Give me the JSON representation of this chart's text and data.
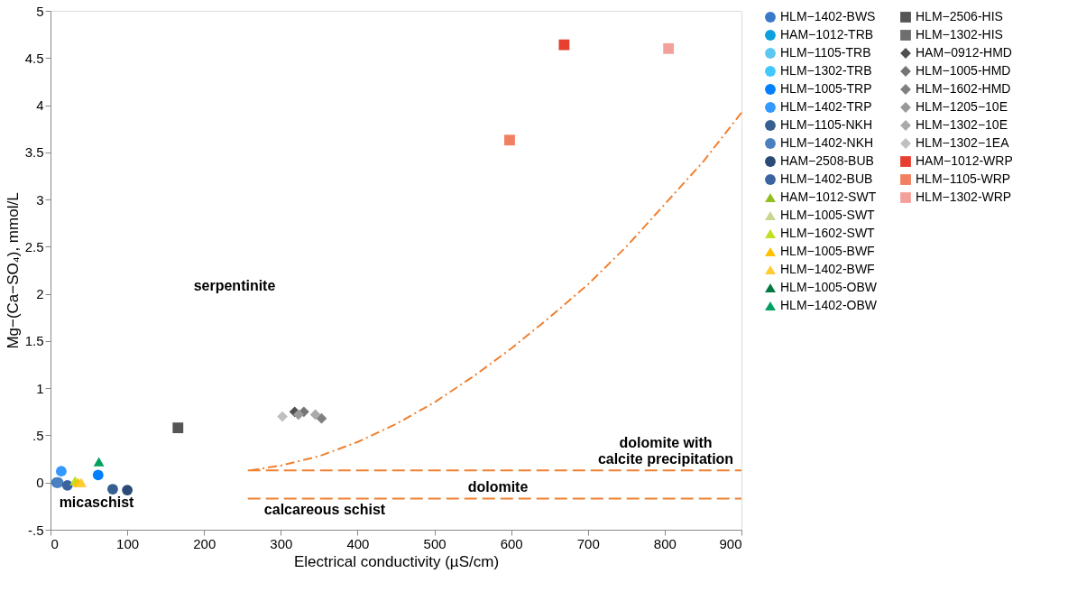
{
  "chart_data": {
    "type": "scatter",
    "xlabel": "Electrical conductivity (µS/cm)",
    "ylabel": "Mg−(Ca−SO₄), mmol/L",
    "xlim": [
      0,
      900
    ],
    "xticks": [
      0,
      100,
      200,
      300,
      400,
      500,
      600,
      700,
      800,
      900
    ],
    "ylim": [
      -0.5,
      5
    ],
    "yticks": [
      {
        "value": -0.5,
        "label": "-.5"
      },
      0,
      {
        "value": 0.5,
        "label": ".5"
      },
      1,
      1.5,
      2,
      2.5,
      3,
      3.5,
      4,
      4.5,
      5
    ],
    "grid": false,
    "legend": "right",
    "series": [
      {
        "name": "HLM−1402-BWS",
        "color": "#3a78c9",
        "marker": "circle",
        "x": [
          8
        ],
        "values": [
          0.0
        ]
      },
      {
        "name": "HAM−1012-TRB",
        "color": "#0aa0e0",
        "marker": "circle",
        "x": [
          null
        ],
        "values": [
          null
        ]
      },
      {
        "name": "HLM−1105-TRB",
        "color": "#5ac8f0",
        "marker": "circle"
      },
      {
        "name": "HLM−1302-TRB",
        "color": "#40c8ff",
        "marker": "circle",
        "x": [
          null
        ],
        "values": [
          null
        ]
      },
      {
        "name": "HLM−1005-TRP",
        "color": "#0080ff",
        "marker": "circle",
        "x": [
          62
        ],
        "values": [
          0.08
        ]
      },
      {
        "name": "HLM−1402-TRP",
        "color": "#3399ff",
        "marker": "circle",
        "x": [
          14
        ],
        "values": [
          0.12
        ]
      },
      {
        "name": "HLM−1105-NKH",
        "color": "#345f90",
        "marker": "circle",
        "x": [
          81
        ],
        "values": [
          -0.07
        ]
      },
      {
        "name": "HLM−1402-NKH",
        "color": "#4a80c0",
        "marker": "circle",
        "x": [
          10
        ],
        "values": [
          0.0
        ]
      },
      {
        "name": "HAM−2508-BUB",
        "color": "#2a4a78",
        "marker": "circle",
        "x": [
          100
        ],
        "values": [
          -0.08
        ]
      },
      {
        "name": "HLM−1402-BUB",
        "color": "#3a64a0",
        "marker": "circle",
        "x": [
          22
        ],
        "values": [
          -0.03
        ]
      },
      {
        "name": "HAM−1012-SWT",
        "color": "#90c020",
        "marker": "triangle",
        "x": [
          null
        ],
        "values": [
          null
        ]
      },
      {
        "name": "HLM−1005-SWT",
        "color": "#c8d890",
        "marker": "triangle",
        "x": [
          null
        ],
        "values": [
          null
        ]
      },
      {
        "name": "HLM−1602-SWT",
        "color": "#c0e020",
        "marker": "triangle",
        "x": [
          32
        ],
        "values": [
          0.02
        ]
      },
      {
        "name": "HLM−1005-BWF",
        "color": "#ffc000",
        "marker": "triangle",
        "x": [
          36
        ],
        "values": [
          0.0
        ]
      },
      {
        "name": "HLM−1402-BWF",
        "color": "#ffcc33",
        "marker": "triangle",
        "x": [
          40
        ],
        "values": [
          0.0
        ]
      },
      {
        "name": "HLM−1005-OBW",
        "color": "#007a40",
        "marker": "triangle",
        "x": [
          null
        ],
        "values": [
          null
        ]
      },
      {
        "name": "HLM−1402-OBW",
        "color": "#00a060",
        "marker": "triangle",
        "x": [
          63
        ],
        "values": [
          0.22
        ]
      },
      {
        "name": "HLM−2506-HIS",
        "color": "#555555",
        "marker": "square",
        "x": [
          166
        ],
        "values": [
          0.58
        ]
      },
      {
        "name": "HLM−1302-HIS",
        "color": "#6e6e6e",
        "marker": "square"
      },
      {
        "name": "HAM−0912-HMD",
        "color": "#505050",
        "marker": "diamond",
        "x": [
          318
        ],
        "values": [
          0.75
        ]
      },
      {
        "name": "HLM−1005-HMD",
        "color": "#757575",
        "marker": "diamond",
        "x": [
          330
        ],
        "values": [
          0.75
        ]
      },
      {
        "name": "HLM−1602-HMD",
        "color": "#808080",
        "marker": "diamond",
        "x": [
          353
        ],
        "values": [
          0.68
        ]
      },
      {
        "name": "HLM−1205−10E",
        "color": "#999999",
        "marker": "diamond",
        "x": [
          323
        ],
        "values": [
          0.72
        ]
      },
      {
        "name": "HLM−1302−10E",
        "color": "#aaaaaa",
        "marker": "diamond",
        "x": [
          345
        ],
        "values": [
          0.72
        ]
      },
      {
        "name": "HLM−1302−1EA",
        "color": "#c0c0c0",
        "marker": "diamond",
        "x": [
          302
        ],
        "values": [
          0.7
        ]
      },
      {
        "name": "HAM−1012-WRP",
        "color": "#e84030",
        "marker": "square",
        "x": [
          669
        ],
        "values": [
          4.64
        ]
      },
      {
        "name": "HLM−1105-WRP",
        "color": "#f08060",
        "marker": "square",
        "x": [
          598
        ],
        "values": [
          3.63
        ]
      },
      {
        "name": "HLM−1302-WRP",
        "color": "#f4a09a",
        "marker": "square",
        "x": [
          805
        ],
        "values": [
          4.6
        ]
      },
      {
        "type": "line",
        "color": "#f08030",
        "line_style": "dashed",
        "x": [
          257,
          900
        ],
        "values": [
          0.13,
          0.13
        ]
      },
      {
        "type": "line",
        "color": "#f08030",
        "line_style": "dashed",
        "x": [
          257,
          900
        ],
        "values": [
          -0.17,
          -0.17
        ]
      },
      {
        "type": "line",
        "color": "#f08030",
        "line_style": "dashdot",
        "x": [
          260,
          300,
          350,
          400,
          450,
          500,
          550,
          600,
          650,
          700,
          750,
          800,
          850,
          900
        ],
        "values": [
          0.13,
          0.18,
          0.28,
          0.43,
          0.62,
          0.85,
          1.12,
          1.42,
          1.75,
          2.1,
          2.5,
          2.95,
          3.4,
          3.92
        ]
      }
    ],
    "annotations": [
      "serpentinite",
      "micaschist",
      "dolomite with\ncalcite precipitation",
      "dolomite",
      "calcareous schist"
    ]
  }
}
